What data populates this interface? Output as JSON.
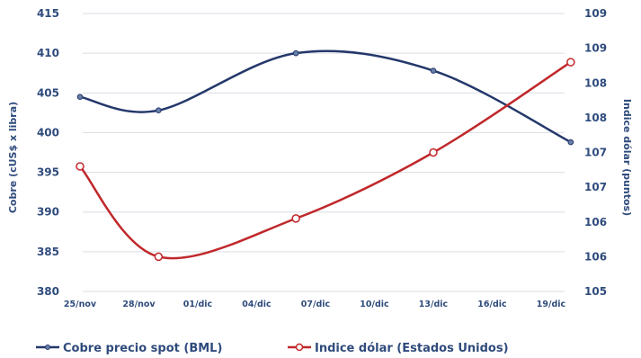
{
  "chart_data": {
    "type": "line",
    "x_ticks": [
      "25/nov",
      "28/nov",
      "01/dic",
      "04/dic",
      "07/dic",
      "10/dic",
      "13/dic",
      "16/dic",
      "19/dic"
    ],
    "ylabel_left": "Cobre (cUS$ x libra)",
    "ylabel_right": "Indice dólar (puntos)",
    "ylim_left": [
      380,
      415
    ],
    "yticks_left": [
      380,
      385,
      390,
      395,
      400,
      405,
      410,
      415
    ],
    "ylim_right": [
      105,
      109
    ],
    "yticks_right_labels": [
      "105",
      "106",
      "106",
      "107",
      "107",
      "108",
      "108",
      "109",
      "109"
    ],
    "grid": true,
    "legend": "bottom",
    "series": [
      {
        "name": "Cobre precio spot (BML)",
        "axis": "left",
        "color": "#24386b",
        "marker": "dot",
        "x": [
          "25/nov",
          "29/nov",
          "06/dic",
          "13/dic",
          "20/dic"
        ],
        "values": [
          404.5,
          402.8,
          410.0,
          407.8,
          398.8
        ]
      },
      {
        "name": "Indice dólar (Estados Unidos)",
        "axis": "right",
        "color": "#c0282b",
        "marker": "open-circle",
        "x": [
          "25/nov",
          "29/nov",
          "06/dic",
          "13/dic",
          "20/dic"
        ],
        "values": [
          106.8,
          105.5,
          106.05,
          107.0,
          108.3
        ]
      }
    ]
  }
}
